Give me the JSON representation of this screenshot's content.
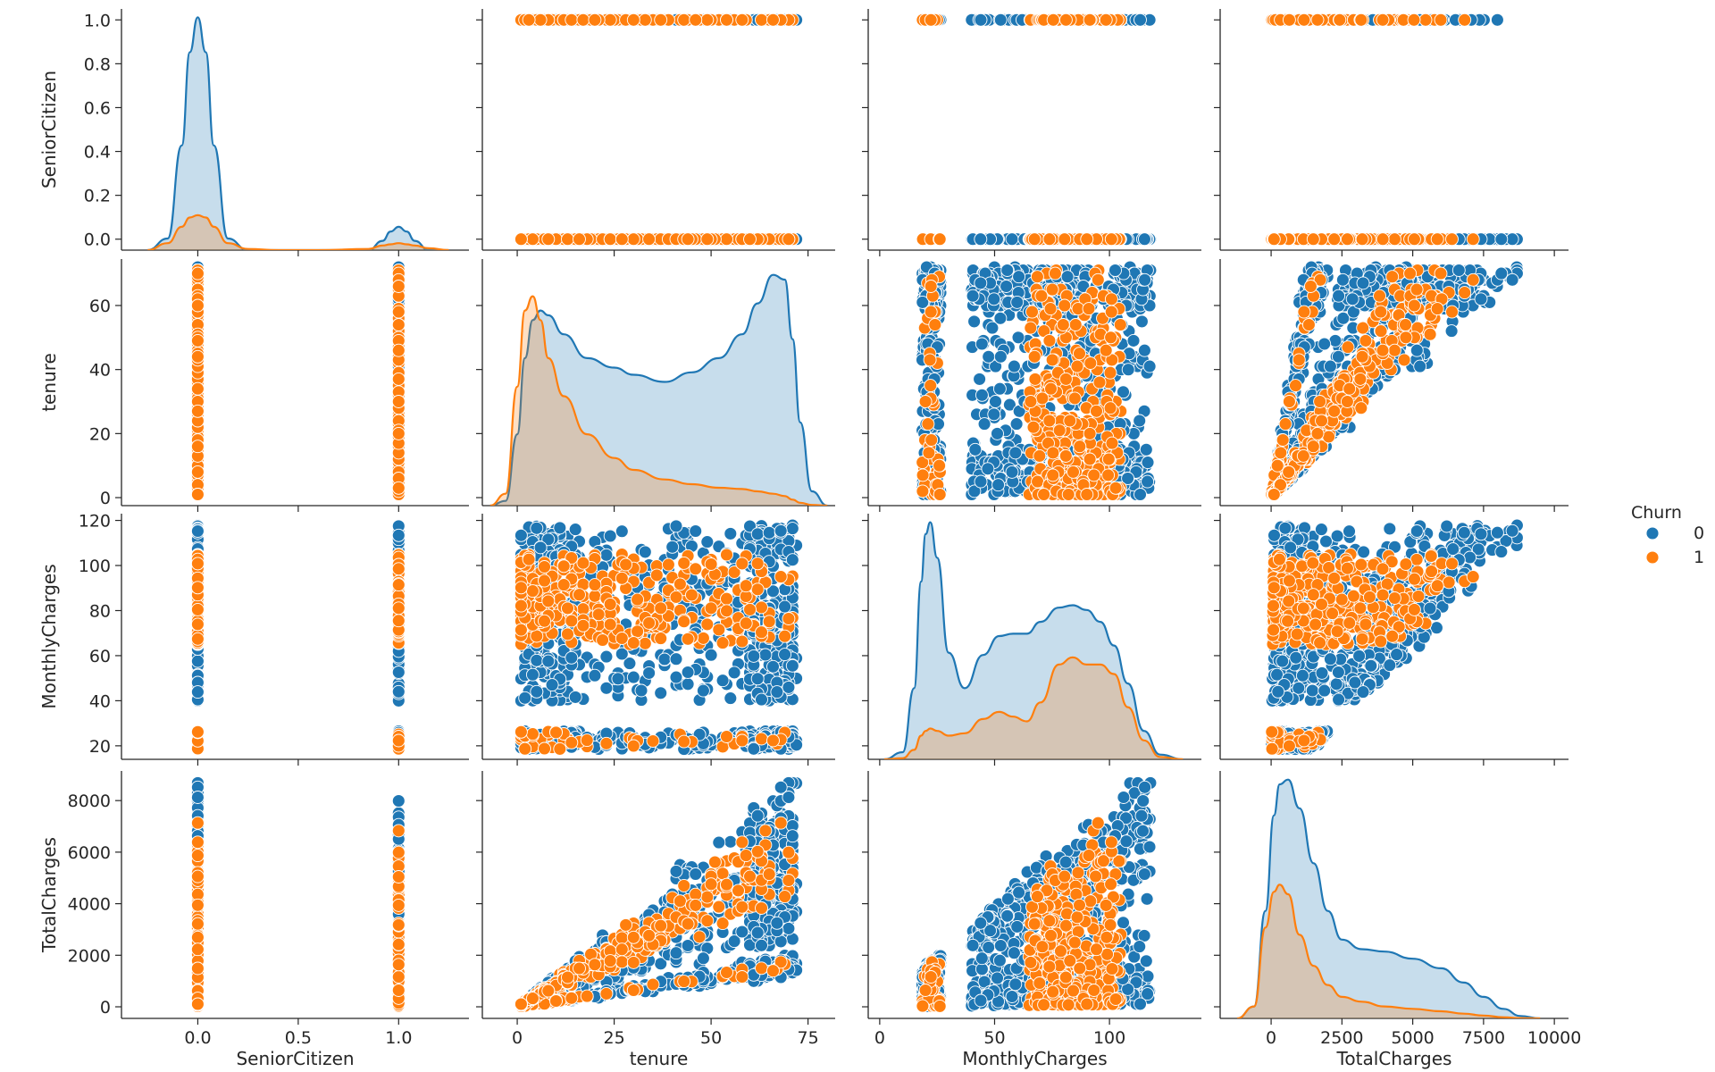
{
  "chart_data": {
    "type": "scatter",
    "subtype": "pairplot",
    "variables": [
      "SeniorCitizen",
      "tenure",
      "MonthlyCharges",
      "TotalCharges"
    ],
    "hue": "Churn",
    "legend": {
      "title": "Churn",
      "placement": "right",
      "entries": [
        {
          "label": "0",
          "color": "#1f77b4"
        },
        {
          "label": "1",
          "color": "#ff7f0e"
        }
      ]
    },
    "colors": {
      "0": "#1f77b4",
      "1": "#ff7f0e"
    },
    "axes": {
      "SeniorCitizen": {
        "range": [
          -0.38,
          1.35
        ],
        "ticks": [
          0.0,
          0.5,
          1.0
        ],
        "tick_labels": [
          "0.0",
          "0.5",
          "1.0"
        ],
        "y_ticks": [
          0.0,
          0.2,
          0.4,
          0.6,
          0.8,
          1.0
        ],
        "y_tick_labels": [
          "0.0",
          "0.2",
          "0.4",
          "0.6",
          "0.8",
          "1.0"
        ]
      },
      "tenure": {
        "range": [
          -9,
          82
        ],
        "ticks": [
          0,
          25,
          50,
          75
        ],
        "tick_labels": [
          "0",
          "25",
          "50",
          "75"
        ],
        "y_ticks": [
          0,
          20,
          40,
          60
        ],
        "y_tick_labels": [
          "0",
          "20",
          "40",
          "60"
        ]
      },
      "MonthlyCharges": {
        "range": [
          -5,
          140
        ],
        "ticks": [
          0,
          50,
          100
        ],
        "tick_labels": [
          "0",
          "50",
          "100"
        ],
        "y_ticks": [
          20,
          40,
          60,
          80,
          100,
          120
        ],
        "y_tick_labels": [
          "20",
          "40",
          "60",
          "80",
          "100",
          "120"
        ]
      },
      "TotalCharges": {
        "range": [
          -1800,
          10500
        ],
        "ticks": [
          0,
          2500,
          5000,
          7500,
          10000
        ],
        "tick_labels": [
          "0",
          "2500",
          "5000",
          "7500",
          "10000"
        ],
        "y_ticks": [
          0,
          2000,
          4000,
          6000,
          8000
        ],
        "y_tick_labels": [
          "0",
          "2000",
          "4000",
          "6000",
          "8000"
        ]
      }
    },
    "kde": {
      "SeniorCitizen": {
        "x": [
          -0.25,
          -0.15,
          -0.08,
          -0.04,
          0.0,
          0.04,
          0.08,
          0.15,
          0.25,
          0.4,
          0.6,
          0.85,
          0.92,
          0.96,
          1.0,
          1.04,
          1.08,
          1.15,
          1.25
        ],
        "0": [
          0.0,
          0.05,
          0.45,
          0.85,
          1.0,
          0.85,
          0.45,
          0.05,
          0.0,
          0.0,
          0.0,
          0.0,
          0.04,
          0.08,
          0.1,
          0.08,
          0.04,
          0.0,
          0.0
        ],
        "1": [
          0.0,
          0.03,
          0.1,
          0.14,
          0.15,
          0.14,
          0.1,
          0.03,
          0.005,
          0.0,
          0.0,
          0.005,
          0.02,
          0.025,
          0.03,
          0.025,
          0.02,
          0.008,
          0.0
        ]
      },
      "tenure": {
        "x": [
          -7,
          -3,
          0,
          2,
          4,
          6,
          8,
          12,
          18,
          25,
          30,
          38,
          45,
          52,
          58,
          62,
          66,
          69,
          71,
          73,
          76,
          80
        ],
        "0": [
          0.0,
          0.02,
          0.3,
          0.62,
          0.78,
          0.82,
          0.8,
          0.72,
          0.62,
          0.58,
          0.55,
          0.52,
          0.56,
          0.62,
          0.72,
          0.85,
          0.97,
          0.95,
          0.7,
          0.35,
          0.06,
          0.0
        ],
        "1": [
          0.0,
          0.05,
          0.5,
          0.82,
          0.88,
          0.78,
          0.62,
          0.46,
          0.3,
          0.2,
          0.15,
          0.11,
          0.09,
          0.075,
          0.07,
          0.06,
          0.05,
          0.04,
          0.025,
          0.012,
          0.003,
          0.0
        ]
      },
      "MonthlyCharges": {
        "x": [
          2,
          10,
          15,
          18,
          20,
          22,
          25,
          30,
          37,
          45,
          52,
          58,
          64,
          70,
          78,
          84,
          90,
          96,
          102,
          108,
          115,
          122,
          132
        ],
        "0": [
          0.0,
          0.03,
          0.3,
          0.75,
          0.95,
          1.0,
          0.85,
          0.45,
          0.3,
          0.44,
          0.52,
          0.53,
          0.53,
          0.58,
          0.64,
          0.65,
          0.63,
          0.58,
          0.48,
          0.32,
          0.12,
          0.02,
          0.0
        ],
        "1": [
          0.0,
          0.005,
          0.04,
          0.1,
          0.12,
          0.13,
          0.12,
          0.1,
          0.11,
          0.17,
          0.2,
          0.18,
          0.16,
          0.24,
          0.4,
          0.43,
          0.4,
          0.4,
          0.36,
          0.22,
          0.08,
          0.01,
          0.0
        ]
      },
      "TotalCharges": {
        "x": [
          -1200,
          -600,
          -200,
          100,
          300,
          600,
          1000,
          1500,
          2000,
          2500,
          3200,
          4000,
          5000,
          6000,
          6800,
          7500,
          8200,
          8800,
          9500
        ],
        "0": [
          0.0,
          0.05,
          0.45,
          0.85,
          0.98,
          1.0,
          0.88,
          0.65,
          0.45,
          0.33,
          0.29,
          0.28,
          0.25,
          0.21,
          0.15,
          0.09,
          0.04,
          0.01,
          0.0
        ],
        "1": [
          0.0,
          0.05,
          0.38,
          0.53,
          0.56,
          0.52,
          0.35,
          0.22,
          0.14,
          0.09,
          0.07,
          0.05,
          0.04,
          0.03,
          0.02,
          0.012,
          0.005,
          0.001,
          0.0
        ]
      }
    },
    "scatter_description": {
      "SeniorCitizen_values": [
        0,
        1
      ],
      "tenure_range": [
        0,
        72
      ],
      "MonthlyCharges_range": [
        18.25,
        118.75
      ],
      "TotalCharges_range": [
        18.8,
        8684.8
      ]
    }
  }
}
